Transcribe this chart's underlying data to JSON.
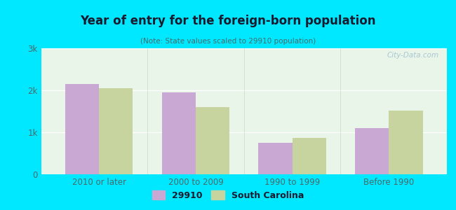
{
  "title": "Year of entry for the foreign-born population",
  "subtitle": "(Note: State values scaled to 29910 population)",
  "categories": [
    "2010 or later",
    "2000 to 2009",
    "1990 to 1999",
    "Before 1990"
  ],
  "values_29910": [
    2150,
    1950,
    750,
    1100
  ],
  "values_sc": [
    2050,
    1600,
    870,
    1520
  ],
  "color_29910": "#c9a8d4",
  "color_sc": "#c8d4a0",
  "legend_labels": [
    "29910",
    "South Carolina"
  ],
  "ylim": [
    0,
    3000
  ],
  "yticks": [
    0,
    1000,
    2000,
    3000
  ],
  "ytick_labels": [
    "0",
    "1k",
    "2k",
    "3k"
  ],
  "background_outer": "#00e8ff",
  "background_inner": "#eaf5ea",
  "bar_width": 0.35,
  "watermark": "City-Data.com",
  "title_color": "#1a1a2e",
  "subtitle_color": "#4a6a6a",
  "tick_color": "#4a6a6a",
  "xsep_color": "#aaccaa"
}
